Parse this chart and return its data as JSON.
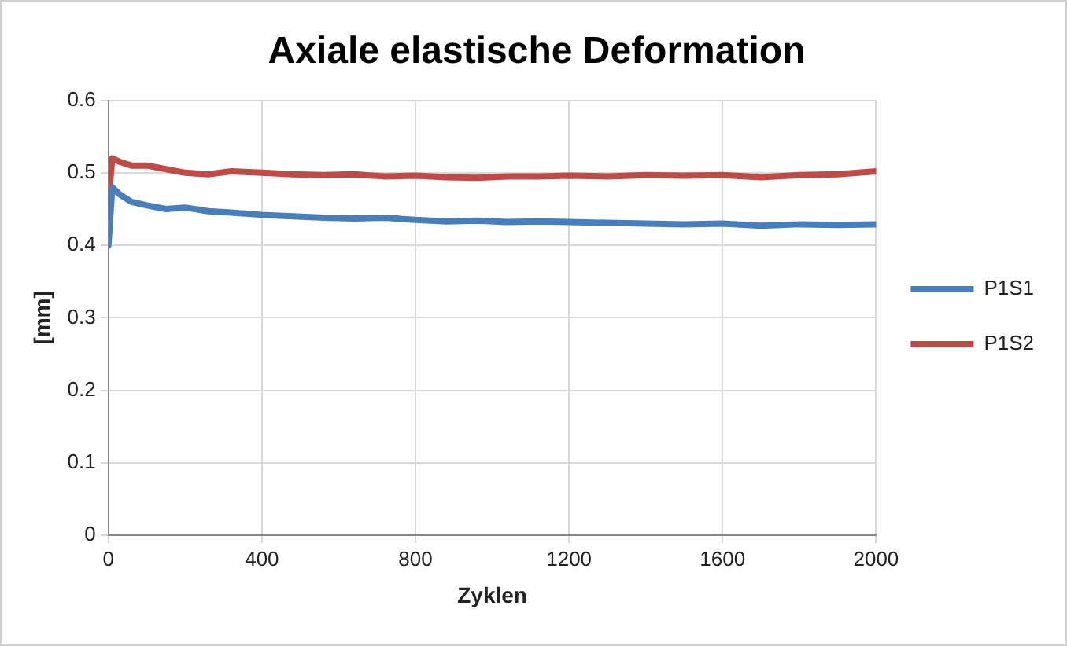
{
  "chart_data": {
    "type": "line",
    "title": "Axiale elastische Deformation",
    "xlabel": "Zyklen",
    "ylabel": "[mm]",
    "xlim": [
      0,
      2000
    ],
    "xticks": [
      0,
      400,
      800,
      1200,
      1600,
      2000
    ],
    "ylim": [
      0,
      0.6
    ],
    "yticks": [
      0,
      0.1,
      0.2,
      0.3,
      0.4,
      0.5,
      0.6
    ],
    "grid": true,
    "legend": "right",
    "marker": "none",
    "line_style": "solid",
    "series": [
      {
        "name": "P1S1",
        "color": "#4a7ebb",
        "x": [
          0,
          10,
          30,
          60,
          100,
          150,
          200,
          260,
          320,
          400,
          480,
          560,
          640,
          720,
          800,
          880,
          960,
          1040,
          1120,
          1200,
          1300,
          1400,
          1500,
          1600,
          1700,
          1800,
          1900,
          2000
        ],
        "values": [
          0.4,
          0.48,
          0.47,
          0.46,
          0.455,
          0.45,
          0.452,
          0.447,
          0.445,
          0.442,
          0.44,
          0.438,
          0.437,
          0.438,
          0.435,
          0.433,
          0.434,
          0.432,
          0.433,
          0.432,
          0.431,
          0.43,
          0.429,
          0.43,
          0.427,
          0.429,
          0.428,
          0.429
        ]
      },
      {
        "name": "P1S2",
        "color": "#be4b48",
        "x": [
          0,
          10,
          30,
          60,
          100,
          150,
          200,
          260,
          320,
          400,
          480,
          560,
          640,
          720,
          800,
          880,
          960,
          1040,
          1120,
          1200,
          1300,
          1400,
          1500,
          1600,
          1700,
          1800,
          1900,
          2000
        ],
        "values": [
          0.46,
          0.52,
          0.515,
          0.51,
          0.51,
          0.505,
          0.5,
          0.498,
          0.502,
          0.5,
          0.498,
          0.497,
          0.498,
          0.495,
          0.496,
          0.494,
          0.493,
          0.495,
          0.495,
          0.496,
          0.495,
          0.497,
          0.496,
          0.497,
          0.494,
          0.497,
          0.498,
          0.502
        ]
      }
    ]
  }
}
